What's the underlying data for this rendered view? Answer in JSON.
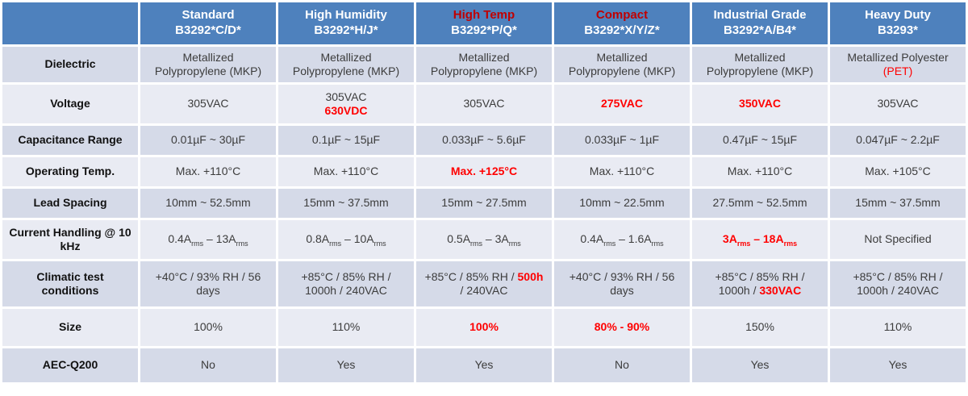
{
  "theme": {
    "header_bg": "#4E81BD",
    "row_dark": "#D5DAE8",
    "row_light": "#E9EBF3",
    "body_text": "#3C3C3C",
    "accent_red": "#FF0000",
    "header_red": "#C00000",
    "header_text": "#FFFFFF"
  },
  "table": {
    "corner_label": "",
    "columns": [
      {
        "name": "Standard",
        "part": "B3292*C/D*",
        "name_red": false
      },
      {
        "name": "High Humidity",
        "part": "B3292*H/J*",
        "name_red": false
      },
      {
        "name": "High Temp",
        "part": "B3292*P/Q*",
        "name_red": true
      },
      {
        "name": "Compact",
        "part": "B3292*X/Y/Z*",
        "name_red": true
      },
      {
        "name": "Industrial Grade",
        "part": "B3292*A/B4*",
        "name_red": false
      },
      {
        "name": "Heavy Duty",
        "part": "B3293*",
        "name_red": false
      }
    ],
    "rows": [
      {
        "label": "Dielectric",
        "cells": [
          [
            {
              "t": "Metallized Polypropylene (MKP)"
            }
          ],
          [
            {
              "t": "Metallized Polypropylene (MKP)"
            }
          ],
          [
            {
              "t": "Metallized Polypropylene (MKP)"
            }
          ],
          [
            {
              "t": "Metallized Polypropylene (MKP)"
            }
          ],
          [
            {
              "t": "Metallized Polypropylene (MKP)"
            }
          ],
          [
            {
              "t": "Metallized Polyester "
            },
            {
              "br": true
            },
            {
              "t": "(PET)",
              "red": true
            }
          ]
        ]
      },
      {
        "label": "Voltage",
        "cells": [
          [
            {
              "t": "305VAC"
            }
          ],
          [
            {
              "t": "305VAC"
            },
            {
              "br": true
            },
            {
              "t": "630VDC",
              "red": true,
              "bold": true
            }
          ],
          [
            {
              "t": "305VAC"
            }
          ],
          [
            {
              "t": "275VAC",
              "red": true,
              "bold": true
            }
          ],
          [
            {
              "t": "350VAC",
              "red": true,
              "bold": true
            }
          ],
          [
            {
              "t": "305VAC"
            }
          ]
        ]
      },
      {
        "label": "Capacitance Range",
        "cells": [
          [
            {
              "t": "0.01µF ~ 30µF"
            }
          ],
          [
            {
              "t": "0.1µF ~ 15µF"
            }
          ],
          [
            {
              "t": "0.033µF ~ 5.6µF"
            }
          ],
          [
            {
              "t": "0.033µF ~ 1µF"
            }
          ],
          [
            {
              "t": "0.47µF ~ 15µF"
            }
          ],
          [
            {
              "t": "0.047µF ~ 2.2µF"
            }
          ]
        ]
      },
      {
        "label": "Operating Temp.",
        "cells": [
          [
            {
              "t": "Max. +110°C"
            }
          ],
          [
            {
              "t": "Max. +110°C"
            }
          ],
          [
            {
              "t": "Max. +125°C",
              "red": true,
              "bold": true
            }
          ],
          [
            {
              "t": "Max. +110°C"
            }
          ],
          [
            {
              "t": "Max. +110°C"
            }
          ],
          [
            {
              "t": "Max. +105°C"
            }
          ]
        ]
      },
      {
        "label": "Lead Spacing",
        "cells": [
          [
            {
              "t": "10mm ~ 52.5mm"
            }
          ],
          [
            {
              "t": "15mm ~ 37.5mm"
            }
          ],
          [
            {
              "t": "15mm ~ 27.5mm"
            }
          ],
          [
            {
              "t": "10mm ~ 22.5mm"
            }
          ],
          [
            {
              "t": "27.5mm ~ 52.5mm"
            }
          ],
          [
            {
              "t": "15mm ~ 37.5mm"
            }
          ]
        ]
      },
      {
        "label": "Current Handling @ 10 kHz",
        "cells": [
          [
            {
              "t": "0.4A"
            },
            {
              "t": "rms",
              "sub": true
            },
            {
              "t": " – 13A"
            },
            {
              "t": "rms",
              "sub": true
            }
          ],
          [
            {
              "t": "0.8A"
            },
            {
              "t": "rms",
              "sub": true
            },
            {
              "t": " – 10A"
            },
            {
              "t": "rms",
              "sub": true
            }
          ],
          [
            {
              "t": "0.5A"
            },
            {
              "t": "rms",
              "sub": true
            },
            {
              "t": " – 3A"
            },
            {
              "t": "rms",
              "sub": true
            }
          ],
          [
            {
              "t": "0.4A"
            },
            {
              "t": "rms",
              "sub": true
            },
            {
              "t": " – 1.6A"
            },
            {
              "t": "rms",
              "sub": true
            }
          ],
          [
            {
              "t": "3A",
              "red": true,
              "bold": true
            },
            {
              "t": "rms",
              "sub": true,
              "red": true,
              "bold": true
            },
            {
              "t": " – 18A",
              "red": true,
              "bold": true
            },
            {
              "t": "rms",
              "sub": true,
              "red": true,
              "bold": true
            }
          ],
          [
            {
              "t": "Not Specified"
            }
          ]
        ]
      },
      {
        "label": "Climatic test conditions",
        "cells": [
          [
            {
              "t": "+40°C / 93% RH / 56 days"
            }
          ],
          [
            {
              "t": "+85°C / 85% RH / 1000h / 240VAC"
            }
          ],
          [
            {
              "t": "+85°C / 85% RH / "
            },
            {
              "t": "500h",
              "red": true,
              "bold": true
            },
            {
              "t": " / 240VAC"
            }
          ],
          [
            {
              "t": "+40°C / 93% RH / 56 days"
            }
          ],
          [
            {
              "t": "+85°C / 85% RH / 1000h / "
            },
            {
              "t": "330VAC",
              "red": true,
              "bold": true
            }
          ],
          [
            {
              "t": "+85°C / 85% RH / 1000h / 240VAC"
            }
          ]
        ]
      },
      {
        "label": "Size",
        "cells": [
          [
            {
              "t": "100%"
            }
          ],
          [
            {
              "t": "110%"
            }
          ],
          [
            {
              "t": "100%",
              "red": true,
              "bold": true
            }
          ],
          [
            {
              "t": "80% - 90%",
              "red": true,
              "bold": true
            }
          ],
          [
            {
              "t": "150%"
            }
          ],
          [
            {
              "t": "110%"
            }
          ]
        ]
      },
      {
        "label": "AEC-Q200",
        "cells": [
          [
            {
              "t": "No"
            }
          ],
          [
            {
              "t": "Yes"
            }
          ],
          [
            {
              "t": "Yes"
            }
          ],
          [
            {
              "t": "No"
            }
          ],
          [
            {
              "t": "Yes"
            }
          ],
          [
            {
              "t": "Yes"
            }
          ]
        ]
      }
    ]
  }
}
